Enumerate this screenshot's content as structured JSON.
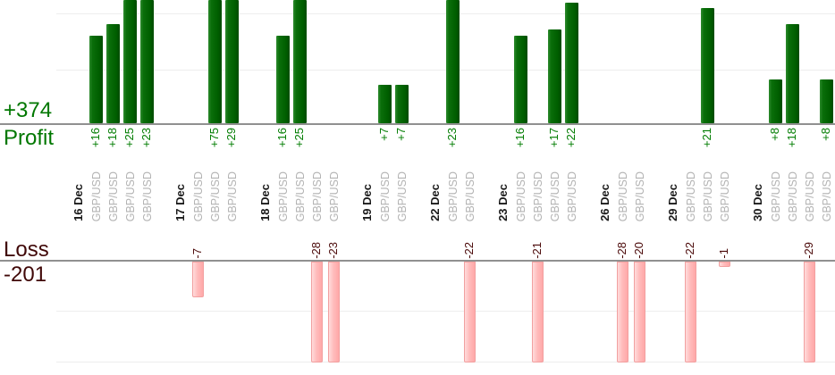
{
  "summary": {
    "profit_total": "+374",
    "profit_label": "Profit",
    "loss_label": "Loss",
    "loss_total": "-201"
  },
  "chart_data": {
    "type": "bar",
    "title": "",
    "xlabel": "",
    "ylabel": "",
    "legend": "none",
    "grid": "on",
    "profit_axis": {
      "gridline_values": [
        10,
        20
      ],
      "visible_max": 22.5
    },
    "loss_axis": {
      "gridline_values": [
        -10,
        -20
      ],
      "visible_min": -20
    },
    "colors": {
      "profit_bar": "#006600",
      "profit_text": "#007700",
      "loss_bar": "#ffb3b3",
      "loss_text": "#4a0808",
      "pair_text": "#b3b3b3",
      "axis_line": "#909090",
      "gridline": "#ededed"
    },
    "groups": [
      {
        "date": "16 Dec",
        "trades": [
          {
            "pair": "GBP/USD",
            "value": 16,
            "label": "+16"
          },
          {
            "pair": "GBP/USD",
            "value": 18,
            "label": "+18"
          },
          {
            "pair": "GBP/USD",
            "value": 25,
            "label": "+25"
          },
          {
            "pair": "GBP/USD",
            "value": 23,
            "label": "+23"
          }
        ]
      },
      {
        "date": "17 Dec",
        "trades": [
          {
            "pair": "GBP/USD",
            "value": -7,
            "label": "-7"
          },
          {
            "pair": "GBP/USD",
            "value": 75,
            "label": "+75"
          },
          {
            "pair": "GBP/USD",
            "value": 29,
            "label": "+29"
          }
        ]
      },
      {
        "date": "18 Dec",
        "trades": [
          {
            "pair": "GBP/USD",
            "value": 16,
            "label": "+16"
          },
          {
            "pair": "GBP/USD",
            "value": 25,
            "label": "+25"
          },
          {
            "pair": "GBP/USD",
            "value": -28,
            "label": "-28"
          },
          {
            "pair": "GBP/USD",
            "value": -23,
            "label": "-23"
          }
        ]
      },
      {
        "date": "19 Dec",
        "trades": [
          {
            "pair": "GBP/USD",
            "value": 7,
            "label": "+7"
          },
          {
            "pair": "GBP/USD",
            "value": 7,
            "label": "+7"
          }
        ]
      },
      {
        "date": "22 Dec",
        "trades": [
          {
            "pair": "GBP/USD",
            "value": 23,
            "label": "+23"
          },
          {
            "pair": "GBP/USD",
            "value": -22,
            "label": "-22"
          }
        ]
      },
      {
        "date": "23 Dec",
        "trades": [
          {
            "pair": "GBP/USD",
            "value": 16,
            "label": "+16"
          },
          {
            "pair": "GBP/USD",
            "value": -21,
            "label": "-21"
          },
          {
            "pair": "GBP/USD",
            "value": 17,
            "label": "+17"
          },
          {
            "pair": "GBP/USD",
            "value": 22,
            "label": "+22"
          }
        ]
      },
      {
        "date": "26 Dec",
        "trades": [
          {
            "pair": "GBP/USD",
            "value": -28,
            "label": "-28"
          },
          {
            "pair": "GBP/USD",
            "value": -20,
            "label": "-20"
          }
        ]
      },
      {
        "date": "29 Dec",
        "trades": [
          {
            "pair": "GBP/USD",
            "value": -22,
            "label": "-22"
          },
          {
            "pair": "GBP/USD",
            "value": 21,
            "label": "+21"
          },
          {
            "pair": "GBP/USD",
            "value": -1,
            "label": "-1"
          }
        ]
      },
      {
        "date": "30 Dec",
        "trades": [
          {
            "pair": "GBP/USD",
            "value": 8,
            "label": "+8"
          },
          {
            "pair": "GBP/USD",
            "value": 18,
            "label": "+18"
          },
          {
            "pair": "GBP/USD",
            "value": -29,
            "label": "-29"
          },
          {
            "pair": "GBP/USD",
            "value": 8,
            "label": "+8"
          }
        ]
      }
    ]
  }
}
